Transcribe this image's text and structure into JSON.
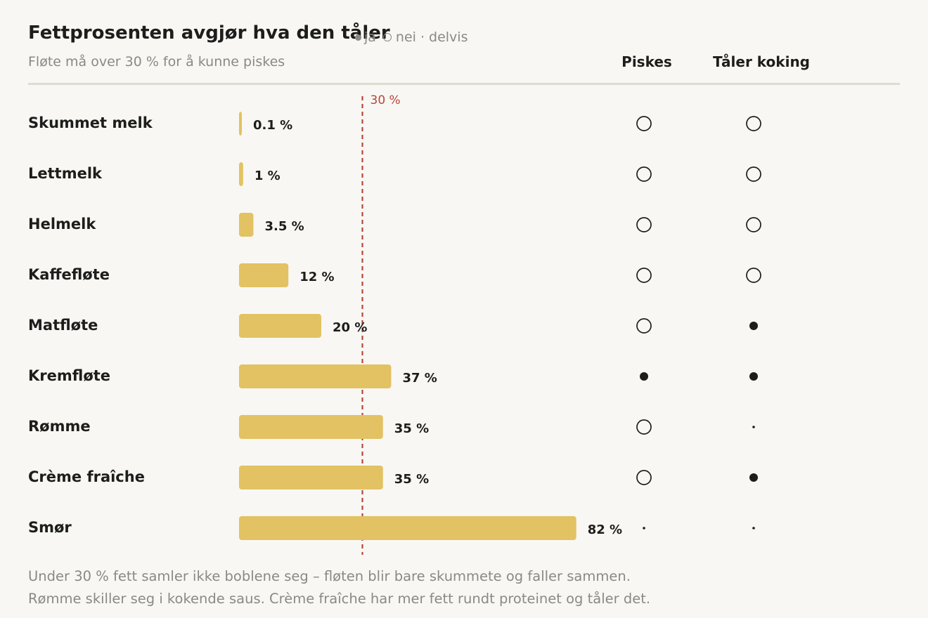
{
  "title": "Fettprosenten avgjør hva den tåler",
  "subtitle": "Fløte må over 30 % for å kunne piskes",
  "legend": {
    "ja": "ja",
    "nei": "nei",
    "delvis": "· delvis"
  },
  "columns": {
    "whip": "Piskes",
    "boil": "Tåler koking"
  },
  "notes": [
    "Under 30 % fett samler ikke boblene seg – fløten blir bare skummete og faller sammen.",
    "Rømme skiller seg i kokende saus. Crème fraîche har mer fett rundt proteinet og tåler det."
  ],
  "colors": {
    "bar": "#e2c262",
    "reference": "#b6473a",
    "text": "#1d1d1b",
    "muted": "#8a8a84"
  },
  "chart_data": {
    "type": "bar",
    "orientation": "horizontal",
    "categories": [
      "Skummet melk",
      "Lettmelk",
      "Helmelk",
      "Kaffefløte",
      "Matfløte",
      "Kremfløte",
      "Rømme",
      "Crème fraîche",
      "Smør"
    ],
    "values": [
      0.1,
      1,
      3.5,
      12,
      20,
      37,
      35,
      35,
      82
    ],
    "value_labels": [
      "0.1 %",
      "1 %",
      "3.5 %",
      "12 %",
      "20 %",
      "37 %",
      "35 %",
      "35 %",
      "82 %"
    ],
    "reference_line": {
      "value": 30,
      "label": "30 %"
    },
    "piskes": [
      "nei",
      "nei",
      "nei",
      "nei",
      "nei",
      "ja",
      "nei",
      "nei",
      "delvis"
    ],
    "taler_koking": [
      "nei",
      "nei",
      "nei",
      "nei",
      "ja",
      "ja",
      "delvis",
      "ja",
      "delvis"
    ],
    "xlim": [
      0,
      82
    ]
  }
}
